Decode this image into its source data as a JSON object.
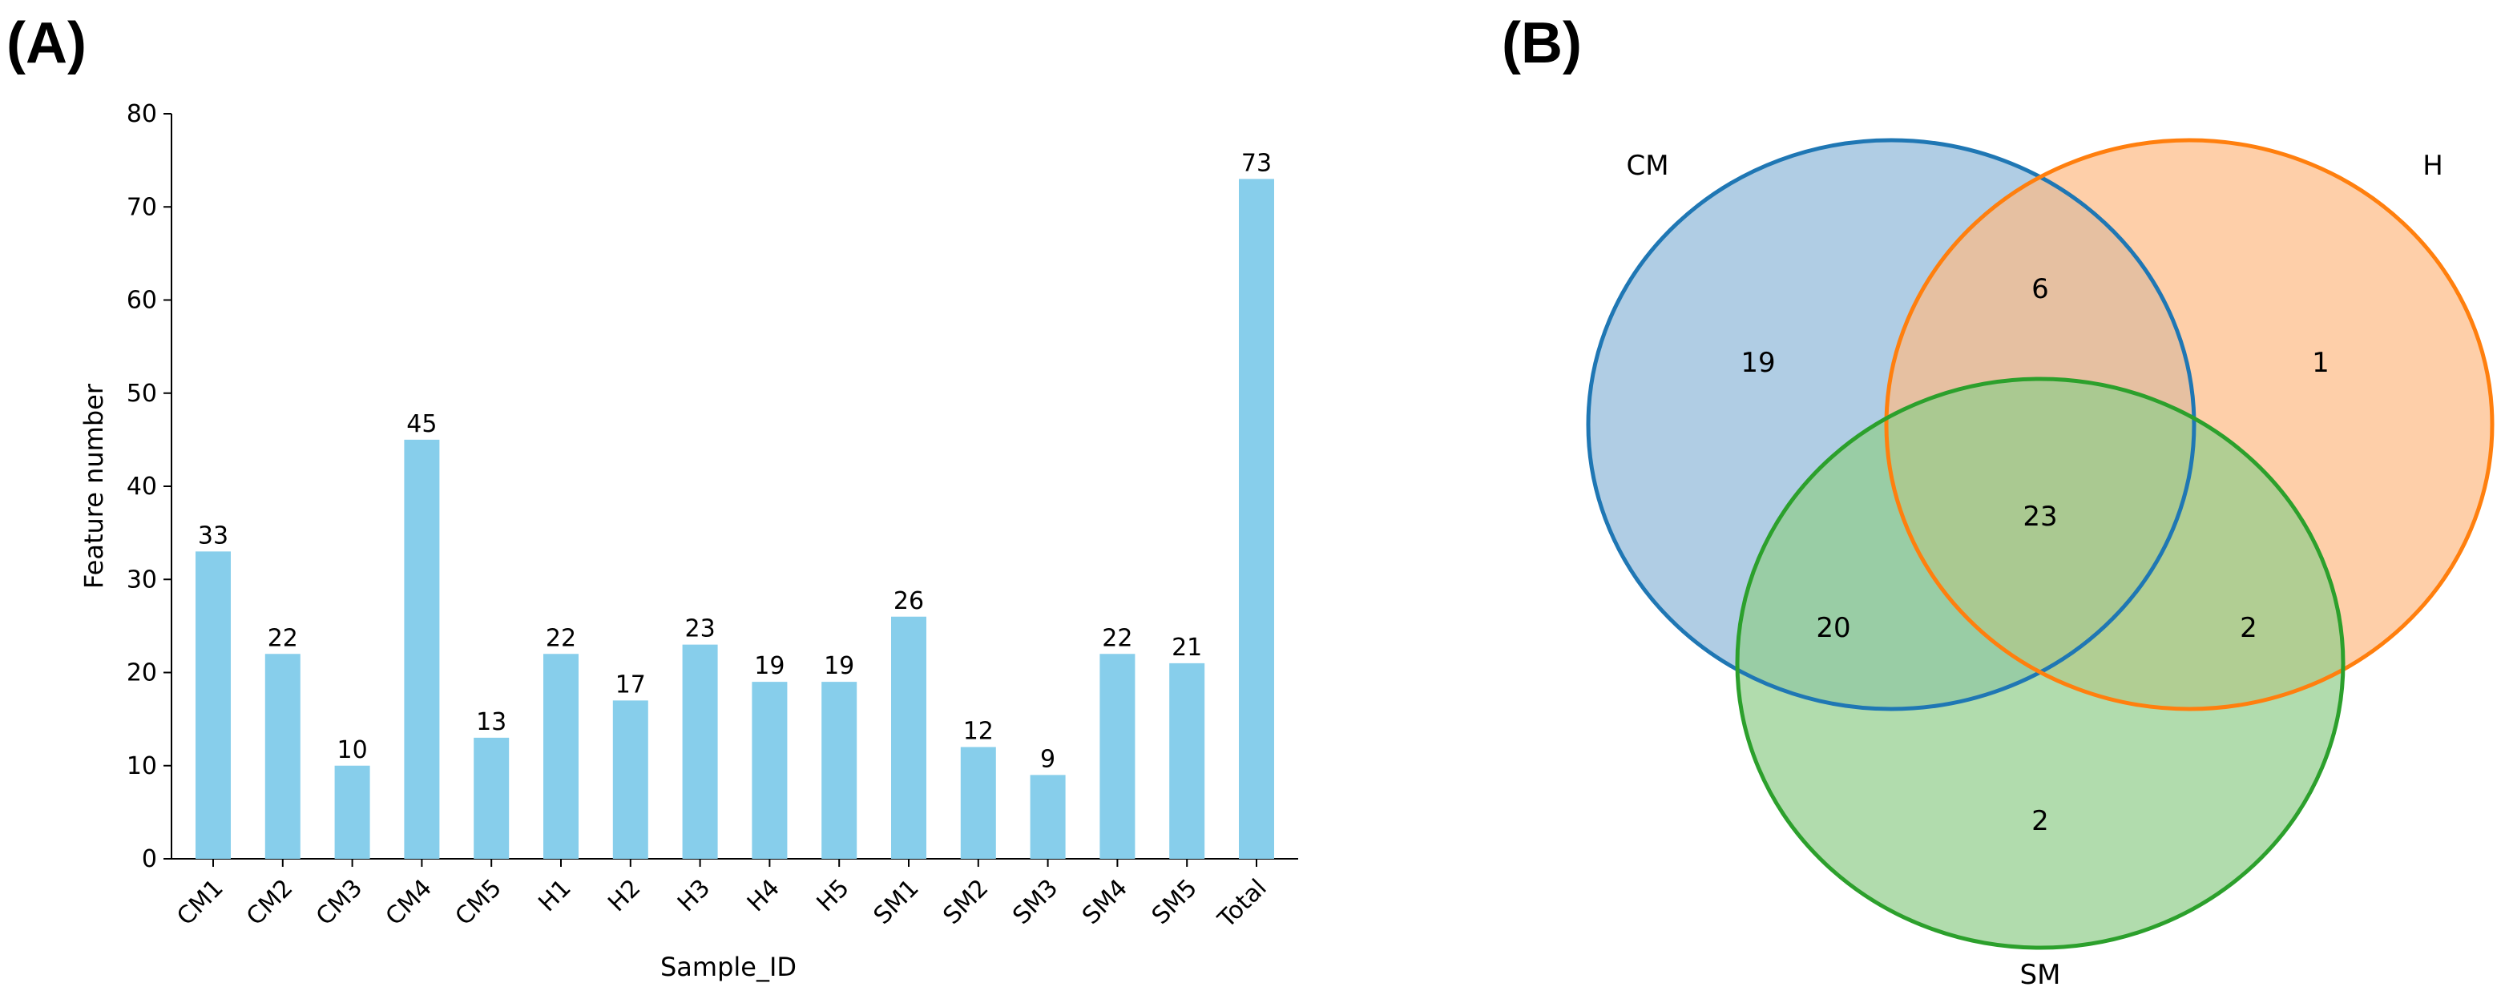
{
  "panels": {
    "a_label": "(A)",
    "b_label": "(B)"
  },
  "chart_data": [
    {
      "type": "bar",
      "categories": [
        "CM1",
        "CM2",
        "CM3",
        "CM4",
        "CM5",
        "H1",
        "H2",
        "H3",
        "H4",
        "H5",
        "SM1",
        "SM2",
        "SM3",
        "SM4",
        "SM5",
        "Total"
      ],
      "values": [
        33,
        22,
        10,
        45,
        13,
        22,
        17,
        23,
        19,
        19,
        26,
        12,
        9,
        22,
        21,
        73
      ],
      "title": "",
      "xlabel": "Sample_ID",
      "ylabel": "Feature number",
      "ylim": [
        0,
        80
      ],
      "yticks": [
        0,
        10,
        20,
        30,
        40,
        50,
        60,
        70,
        80
      ],
      "bar_color": "#87CEEB",
      "grid": false
    },
    {
      "type": "venn",
      "sets": [
        {
          "name": "CM",
          "color": "#1f77b4",
          "fill": "#8fb8d9"
        },
        {
          "name": "H",
          "color": "#ff7f0e",
          "fill": "#fdbb84"
        },
        {
          "name": "SM",
          "color": "#2ca02c",
          "fill": "#90cd8a"
        }
      ],
      "regions": [
        {
          "sets": [
            "CM"
          ],
          "value": 19
        },
        {
          "sets": [
            "H"
          ],
          "value": 1
        },
        {
          "sets": [
            "SM"
          ],
          "value": 2
        },
        {
          "sets": [
            "CM",
            "H"
          ],
          "value": 6
        },
        {
          "sets": [
            "CM",
            "SM"
          ],
          "value": 20
        },
        {
          "sets": [
            "H",
            "SM"
          ],
          "value": 2
        },
        {
          "sets": [
            "CM",
            "H",
            "SM"
          ],
          "value": 23
        }
      ]
    }
  ]
}
